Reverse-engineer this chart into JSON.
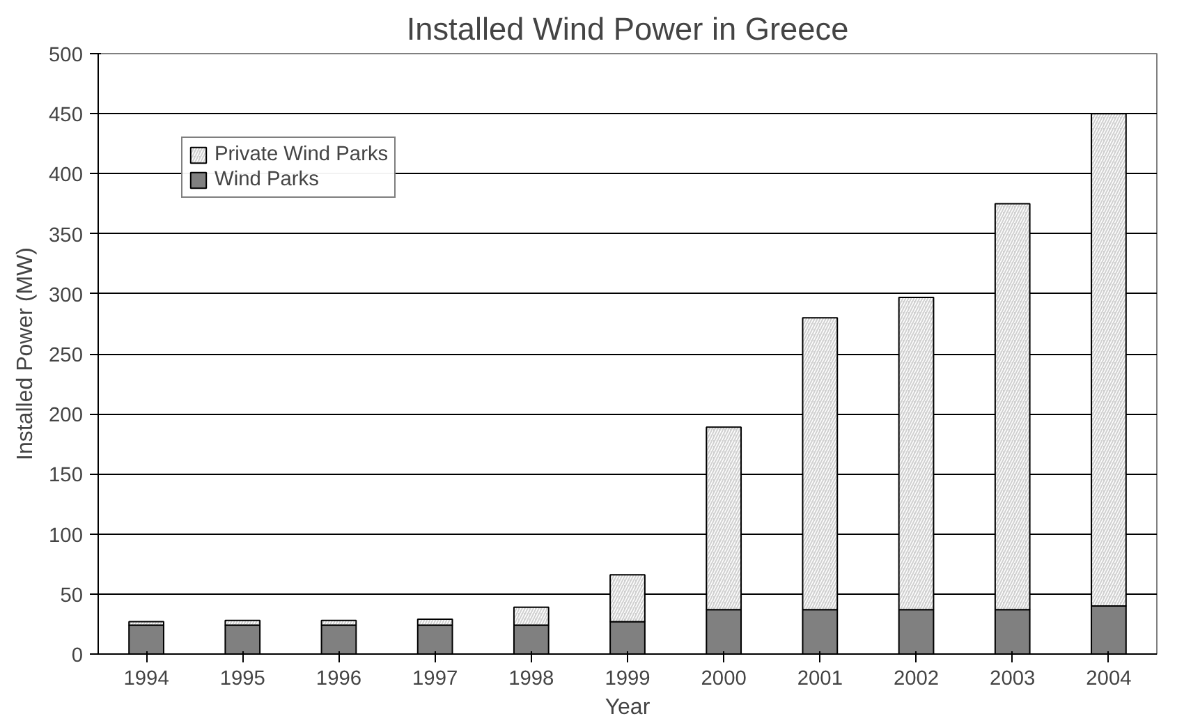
{
  "chart_data": {
    "type": "bar",
    "title": "Installed Wind Power in Greece",
    "xlabel": "Year",
    "ylabel": "Installed Power (MW)",
    "categories": [
      "1994",
      "1995",
      "1996",
      "1997",
      "1998",
      "1999",
      "2000",
      "2001",
      "2002",
      "2003",
      "2004"
    ],
    "stacked": true,
    "ylim": [
      0,
      500
    ],
    "yticks": [
      0,
      50,
      100,
      150,
      200,
      250,
      300,
      350,
      400,
      450,
      500
    ],
    "grid": "y",
    "legend": "top left",
    "series": [
      {
        "name": "Wind Parks",
        "color": "#808080",
        "values": [
          24,
          24,
          24,
          24,
          24,
          27,
          37,
          37,
          37,
          37,
          40
        ]
      },
      {
        "name": "Private Wind Parks",
        "color": "#d0d0d0",
        "values": [
          3,
          4,
          4,
          5,
          15,
          39,
          152,
          243,
          260,
          338,
          410
        ]
      }
    ]
  }
}
